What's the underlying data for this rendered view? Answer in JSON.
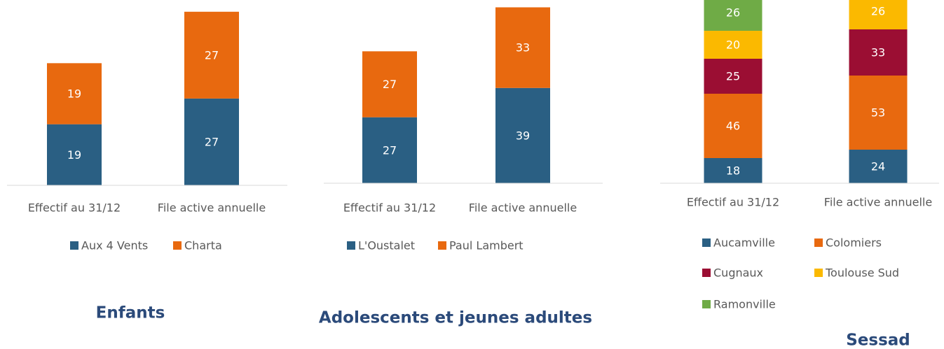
{
  "chart_data": [
    {
      "type": "bar",
      "title": "Enfants",
      "categories": [
        "Effectif au 31/12",
        "File active annuelle"
      ],
      "series": [
        {
          "name": "Aux 4 Vents",
          "color": "#2a5f83",
          "values": [
            19,
            27
          ]
        },
        {
          "name": "Charta",
          "color": "#e8690f",
          "values": [
            19,
            27
          ]
        }
      ],
      "stacked": true,
      "ylim": [
        0,
        57
      ]
    },
    {
      "type": "bar",
      "title": "Adolescents et jeunes adultes",
      "categories": [
        "Effectif au 31/12",
        "File active annuelle"
      ],
      "series": [
        {
          "name": "L'Oustalet",
          "color": "#2a5f83",
          "values": [
            27,
            39
          ]
        },
        {
          "name": "Paul Lambert",
          "color": "#e8690f",
          "values": [
            27,
            33
          ]
        }
      ],
      "stacked": true,
      "ylim": [
        0,
        75
      ]
    },
    {
      "type": "bar",
      "title": "Sessad",
      "categories": [
        "Effectif au 31/12",
        "File active annuelle"
      ],
      "series": [
        {
          "name": "Aucamville",
          "color": "#2a5f83",
          "values": [
            18,
            24
          ]
        },
        {
          "name": "Colomiers",
          "color": "#e8690f",
          "values": [
            46,
            53
          ]
        },
        {
          "name": "Cugnaux",
          "color": "#9b0e33",
          "values": [
            25,
            33
          ]
        },
        {
          "name": "Toulouse Sud",
          "color": "#fbb900",
          "values": [
            20,
            26
          ]
        },
        {
          "name": "Ramonville",
          "color": "#6fab46",
          "values": [
            26,
            null
          ]
        }
      ],
      "stacked": true,
      "ylim": [
        0,
        131
      ]
    }
  ]
}
